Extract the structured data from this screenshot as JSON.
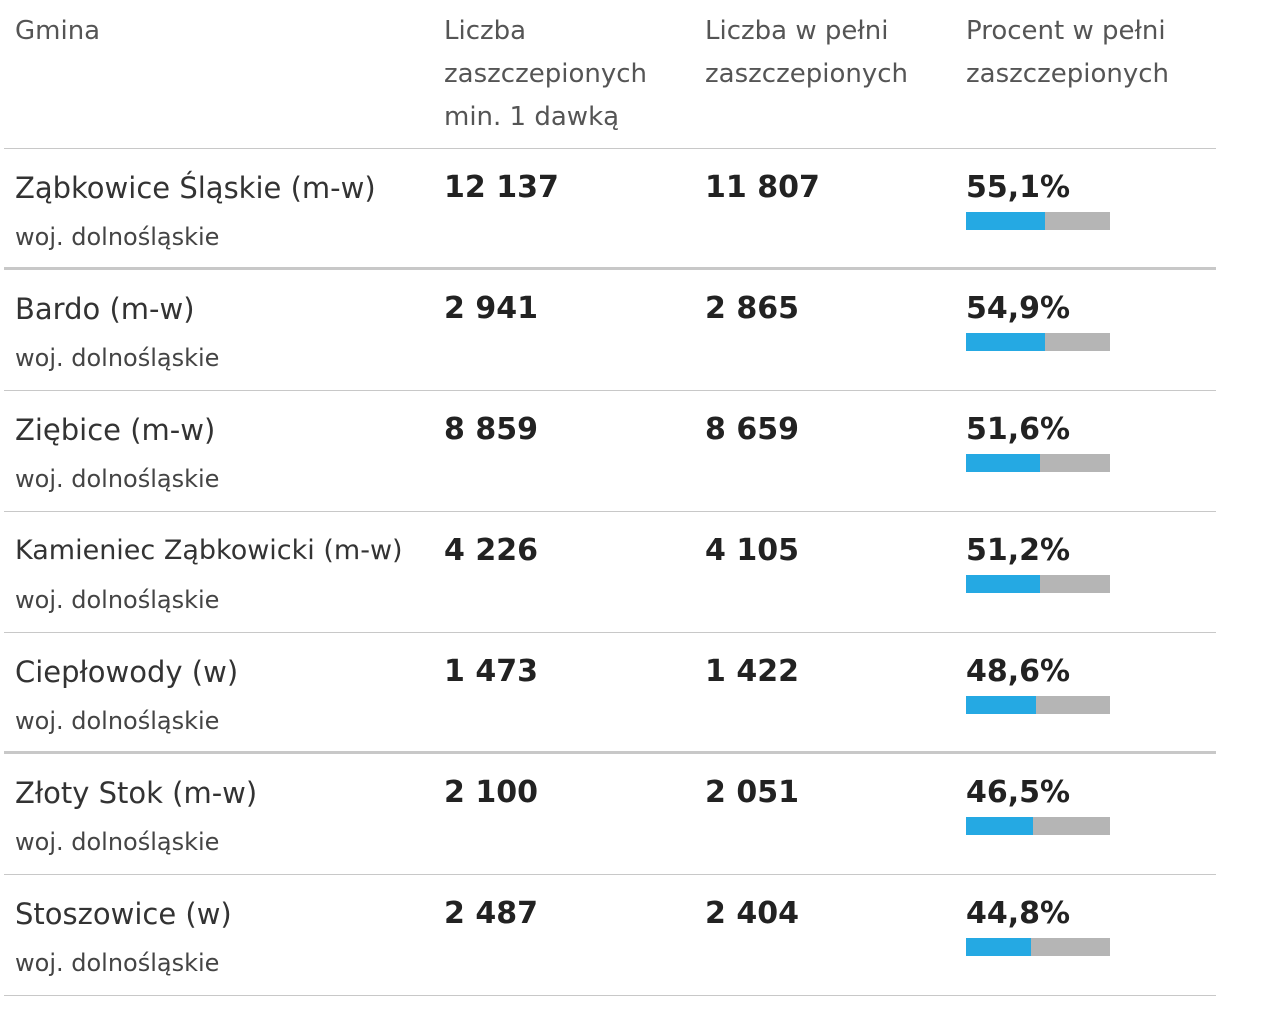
{
  "header": {
    "col_name": "Gmina",
    "col_one_dose": "Liczba zaszczepionych min. 1 dawką",
    "col_full": "Liczba w pełni zaszczepionych",
    "col_pct": "Procent w pełni zaszczepionych"
  },
  "colors": {
    "bar_fill": "#25a9e3",
    "bar_track": "#b5b5b5",
    "divider": "#c8c8c8"
  },
  "rows": [
    {
      "name": "Ząbkowice Śląskie (m-w)",
      "region": "woj. dolnośląskie",
      "one_dose": "12 137",
      "full": "11 807",
      "pct": "55,1%",
      "pct_value": 55.1
    },
    {
      "name": "Bardo (m-w)",
      "region": "woj. dolnośląskie",
      "one_dose": "2 941",
      "full": "2 865",
      "pct": "54,9%",
      "pct_value": 54.9
    },
    {
      "name": "Ziębice (m-w)",
      "region": "woj. dolnośląskie",
      "one_dose": "8 859",
      "full": "8 659",
      "pct": "51,6%",
      "pct_value": 51.6
    },
    {
      "name": "Kamieniec Ząbkowicki (m-w)",
      "region": "woj. dolnośląskie",
      "one_dose": "4 226",
      "full": "4 105",
      "pct": "51,2%",
      "pct_value": 51.2
    },
    {
      "name": "Ciepłowody (w)",
      "region": "woj. dolnośląskie",
      "one_dose": "1 473",
      "full": "1 422",
      "pct": "48,6%",
      "pct_value": 48.6
    },
    {
      "name": "Złoty Stok (m-w)",
      "region": "woj. dolnośląskie",
      "one_dose": "2 100",
      "full": "2 051",
      "pct": "46,5%",
      "pct_value": 46.5
    },
    {
      "name": "Stoszowice (w)",
      "region": "woj. dolnośląskie",
      "one_dose": "2 487",
      "full": "2 404",
      "pct": "44,8%",
      "pct_value": 44.8
    }
  ]
}
